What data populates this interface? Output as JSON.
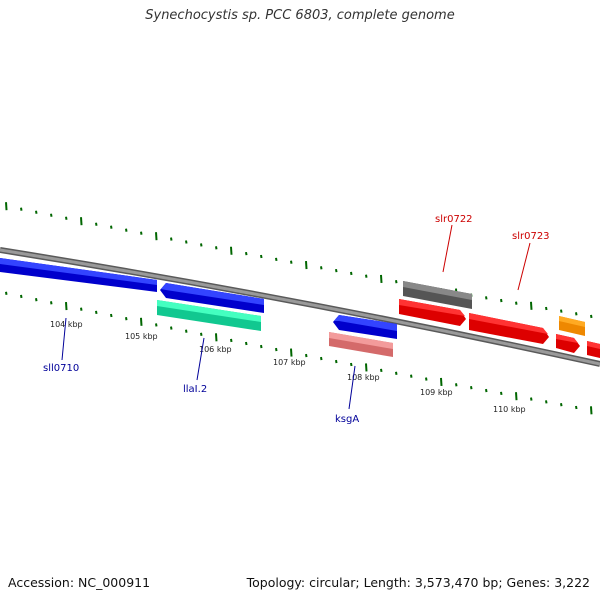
{
  "title": "Synechocystis sp. PCC 6803, complete genome",
  "footer": {
    "accession": "Accession: NC_000911",
    "info": "Topology: circular; Length: 3,573,470 bp; Genes: 3,222"
  },
  "ticks": [
    "104 kbp",
    "105 kbp",
    "106 kbp",
    "107 kbp",
    "108 kbp",
    "109 kbp",
    "110 kbp"
  ],
  "genes": [
    {
      "name": "sll0710",
      "strand": "-",
      "color": "#0000dd"
    },
    {
      "name": "",
      "strand": "-",
      "color": "#0000dd"
    },
    {
      "name": "llaI.2",
      "strand": "",
      "color": "#22e8a8"
    },
    {
      "name": "ksgA",
      "strand": "-",
      "color": "#0000dd"
    },
    {
      "name": "",
      "strand": "",
      "color": "#e88080"
    },
    {
      "name": "slr0722",
      "strand": "",
      "color": "#666666"
    },
    {
      "name": "",
      "strand": "+",
      "color": "#ee0000"
    },
    {
      "name": "slr0723",
      "strand": "+",
      "color": "#ee0000"
    },
    {
      "name": "",
      "strand": "",
      "color": "#ff9900"
    },
    {
      "name": "",
      "strand": "+",
      "color": "#ee0000"
    },
    {
      "name": "",
      "strand": "+",
      "color": "#ee0000"
    }
  ],
  "colors": {
    "backbone": "#888888",
    "tick": "#006600",
    "forward_label": "#cc0000",
    "reverse_label": "#000099"
  }
}
